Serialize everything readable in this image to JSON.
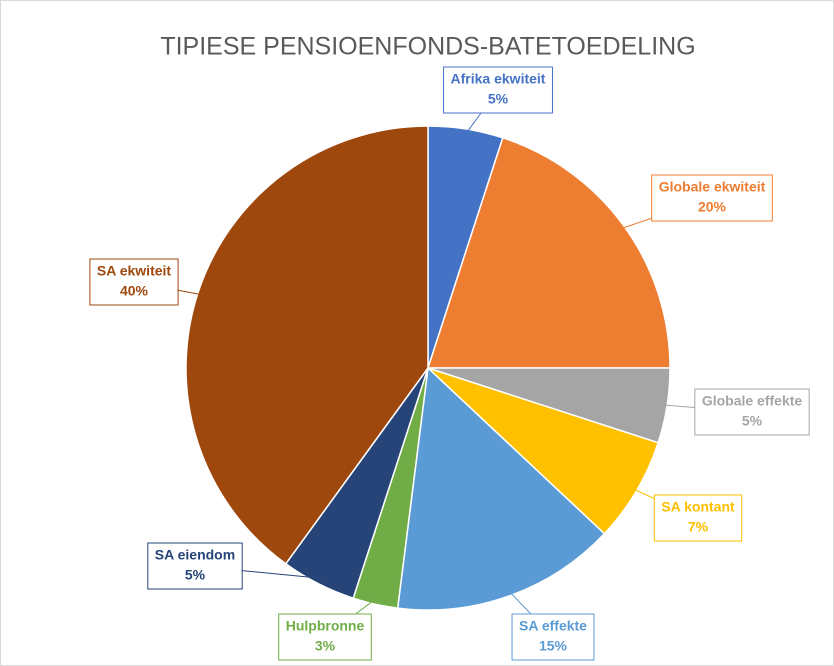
{
  "chart_data": {
    "type": "pie",
    "title": "TIPIESE PENSIOENFONDS-BATETOEDELING",
    "categories": [
      "Afrika ekwiteit",
      "Globale ekwiteit",
      "Globale effekte",
      "SA kontant",
      "SA effekte",
      "Hulpbronne",
      "SA eiendom",
      "SA ekwiteit"
    ],
    "values": [
      5,
      20,
      5,
      7,
      15,
      3,
      5,
      40
    ],
    "value_labels": [
      "5%",
      "20%",
      "5%",
      "7%",
      "15%",
      "3%",
      "5%",
      "40%"
    ],
    "colors": [
      "#4472c4",
      "#ed7d31",
      "#a5a5a5",
      "#ffc000",
      "#5b9bd5",
      "#70ad47",
      "#264478",
      "#9e480e"
    ]
  }
}
